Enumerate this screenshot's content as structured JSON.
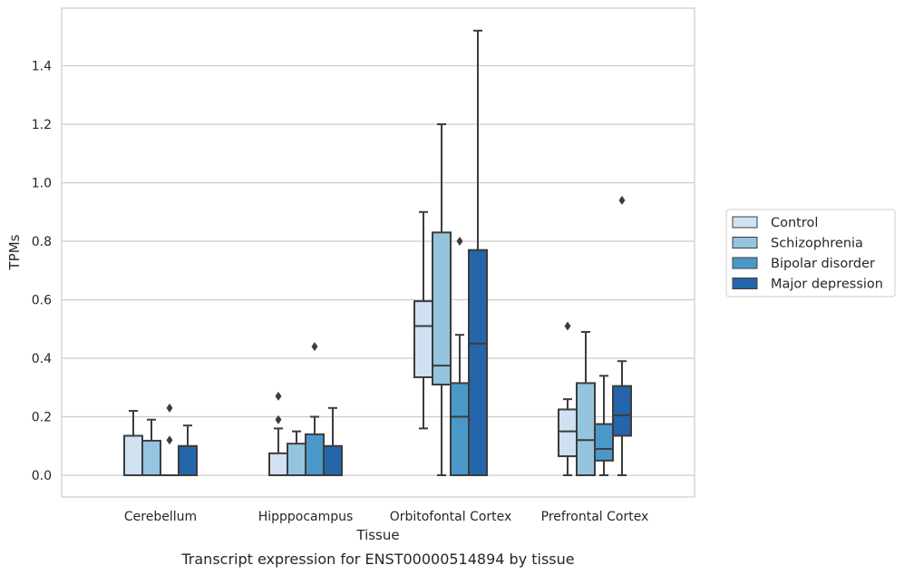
{
  "chart_data": {
    "type": "box",
    "title": "",
    "caption": "Transcript expression for ENST00000514894 by tissue",
    "xlabel": "Tissue",
    "ylabel": "TPMs",
    "ylim": [
      -0.075,
      1.59
    ],
    "yticks": [
      "0.0",
      "0.2",
      "0.4",
      "0.6",
      "0.8",
      "1.0",
      "1.2",
      "1.4"
    ],
    "ytick_values": [
      0,
      0.2,
      0.4,
      0.6,
      0.8,
      1.0,
      1.2,
      1.4
    ],
    "grid": "horizontal",
    "legend_position": "right",
    "categories": [
      "Cerebellum",
      "Hipppocampus",
      "Orbitofontal Cortex",
      "Prefrontal Cortex"
    ],
    "series": [
      {
        "name": "Control",
        "color": "#d0e1f2",
        "boxes": [
          {
            "whisker_low": 0,
            "q1": 0,
            "median": 0,
            "q3": 0.135,
            "whisker_high": 0.22,
            "outliers": []
          },
          {
            "whisker_low": 0,
            "q1": 0,
            "median": 0,
            "q3": 0.075,
            "whisker_high": 0.16,
            "outliers": [
              0.19,
              0.27
            ]
          },
          {
            "whisker_low": 0.16,
            "q1": 0.335,
            "median": 0.51,
            "q3": 0.595,
            "whisker_high": 0.9,
            "outliers": []
          },
          {
            "whisker_low": 0,
            "q1": 0.065,
            "median": 0.15,
            "q3": 0.225,
            "whisker_high": 0.26,
            "outliers": [
              0.51
            ]
          }
        ]
      },
      {
        "name": "Schizophrenia",
        "color": "#94c4df",
        "boxes": [
          {
            "whisker_low": 0,
            "q1": 0,
            "median": 0,
            "q3": 0.118,
            "whisker_high": 0.19,
            "outliers": []
          },
          {
            "whisker_low": 0,
            "q1": 0,
            "median": 0,
            "q3": 0.108,
            "whisker_high": 0.15,
            "outliers": []
          },
          {
            "whisker_low": 0,
            "q1": 0.31,
            "median": 0.375,
            "q3": 0.83,
            "whisker_high": 1.2,
            "outliers": []
          },
          {
            "whisker_low": 0,
            "q1": 0,
            "median": 0.12,
            "q3": 0.315,
            "whisker_high": 0.49,
            "outliers": []
          }
        ]
      },
      {
        "name": "Bipolar disorder",
        "color": "#4a98c9",
        "boxes": [
          {
            "whisker_low": 0,
            "q1": 0,
            "median": 0,
            "q3": 0,
            "whisker_high": 0,
            "outliers": [
              0.12,
              0.23
            ]
          },
          {
            "whisker_low": 0,
            "q1": 0,
            "median": 0,
            "q3": 0.14,
            "whisker_high": 0.2,
            "outliers": [
              0.44
            ]
          },
          {
            "whisker_low": 0,
            "q1": 0,
            "median": 0.2,
            "q3": 0.315,
            "whisker_high": 0.48,
            "outliers": [
              0.8
            ]
          },
          {
            "whisker_low": 0,
            "q1": 0.05,
            "median": 0.09,
            "q3": 0.175,
            "whisker_high": 0.34,
            "outliers": []
          }
        ]
      },
      {
        "name": "Major depression",
        "color": "#2466a9",
        "boxes": [
          {
            "whisker_low": 0,
            "q1": 0,
            "median": 0,
            "q3": 0.1,
            "whisker_high": 0.17,
            "outliers": []
          },
          {
            "whisker_low": 0,
            "q1": 0,
            "median": 0,
            "q3": 0.1,
            "whisker_high": 0.23,
            "outliers": []
          },
          {
            "whisker_low": 0,
            "q1": 0,
            "median": 0.45,
            "q3": 0.77,
            "whisker_high": 1.52,
            "outliers": []
          },
          {
            "whisker_low": 0,
            "q1": 0.135,
            "median": 0.205,
            "q3": 0.305,
            "whisker_high": 0.39,
            "outliers": [
              0.94
            ]
          }
        ]
      }
    ]
  }
}
